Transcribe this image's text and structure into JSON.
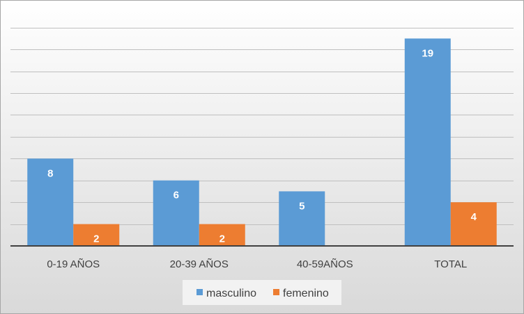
{
  "chart_data": {
    "type": "bar",
    "title": "",
    "xlabel": "",
    "ylabel": "",
    "categories": [
      "0-19 AÑOS",
      "20-39 AÑOS",
      "40-59AÑOS",
      "TOTAL"
    ],
    "series": [
      {
        "name": "masculino",
        "values": [
          8,
          6,
          5,
          19
        ],
        "color": "#5b9bd5"
      },
      {
        "name": "femenino",
        "values": [
          2,
          2,
          null,
          4
        ],
        "color": "#ed7d31"
      }
    ],
    "ylim": [
      0,
      21
    ],
    "grid": true,
    "legend": "bottom",
    "background": "#dcdcdc"
  }
}
